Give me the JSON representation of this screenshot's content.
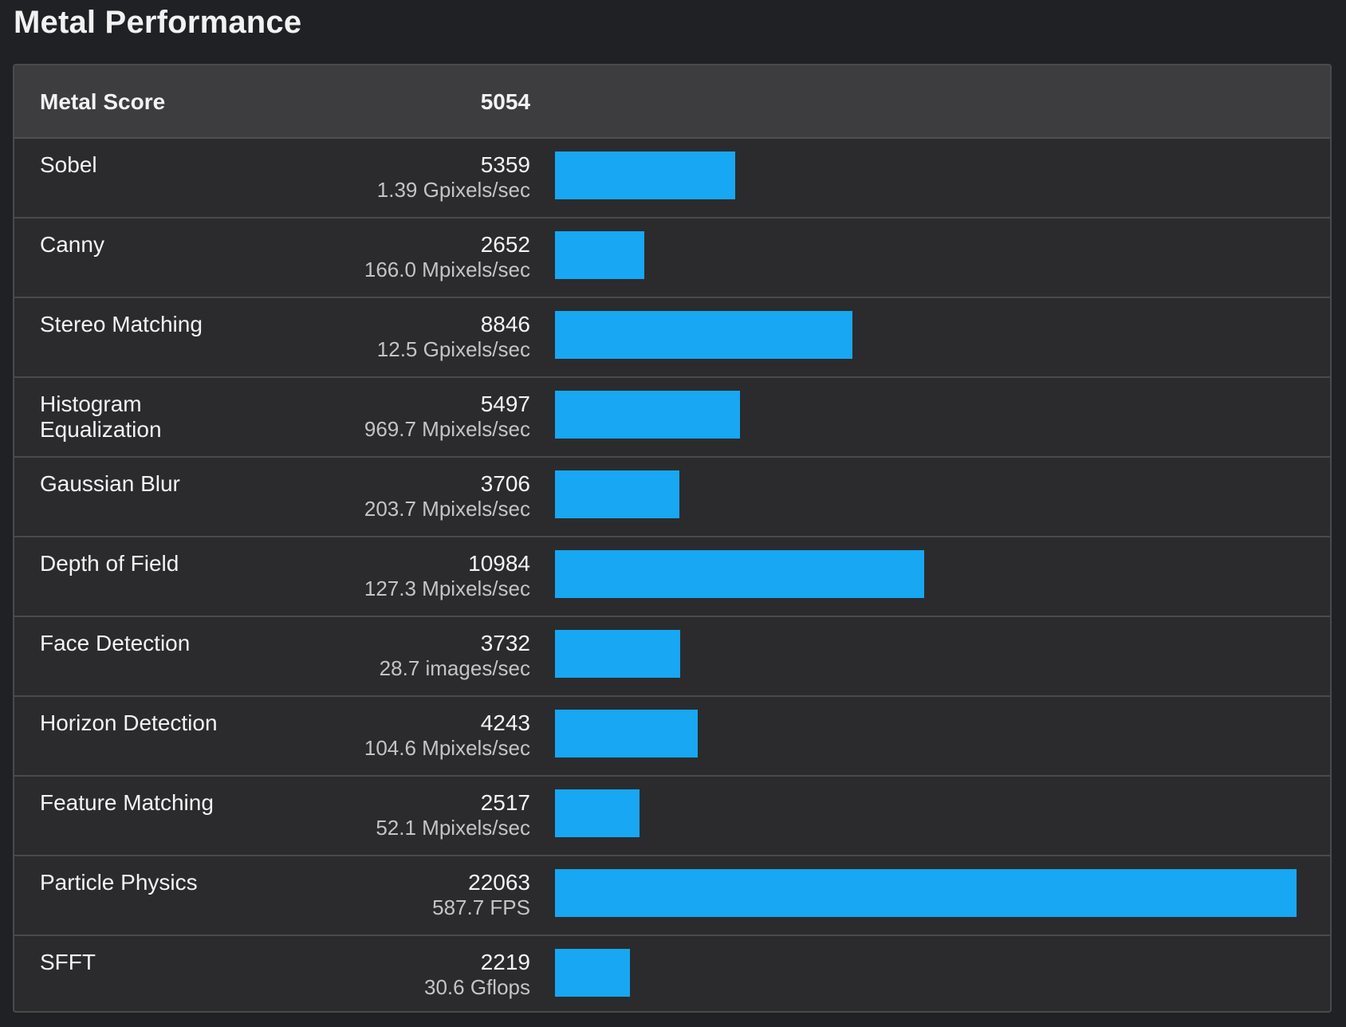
{
  "page": {
    "title": "Metal Performance"
  },
  "summary": {
    "label": "Metal Score",
    "value": "5054"
  },
  "colors": {
    "background": "#202124",
    "panel": "#2b2b2d",
    "header": "#3d3d3f",
    "bar": "#18a7f2"
  },
  "chart_data": {
    "type": "bar",
    "orientation": "horizontal",
    "title": "",
    "xlabel": "",
    "ylabel": "",
    "categories": [
      "Sobel",
      "Canny",
      "Stereo Matching",
      "Histogram Equalization",
      "Gaussian Blur",
      "Depth of Field",
      "Face Detection",
      "Horizon Detection",
      "Feature Matching",
      "Particle Physics",
      "SFFT"
    ],
    "values": [
      5359,
      2652,
      8846,
      5497,
      3706,
      10984,
      3732,
      4243,
      2517,
      22063,
      2219
    ],
    "score_labels": [
      "5359",
      "2652",
      "8846",
      "5497",
      "3706",
      "10984",
      "3732",
      "4243",
      "2517",
      "22063",
      "2219"
    ],
    "rate_labels": [
      "1.39 Gpixels/sec",
      "166.0 Mpixels/sec",
      "12.5 Gpixels/sec",
      "969.7 Mpixels/sec",
      "203.7 Mpixels/sec",
      "127.3 Mpixels/sec",
      "28.7 images/sec",
      "104.6 Mpixels/sec",
      "52.1 Mpixels/sec",
      "587.7 FPS",
      "30.6 Gflops"
    ],
    "xlim": [
      0,
      22063
    ],
    "grid": false,
    "legend": "none"
  }
}
